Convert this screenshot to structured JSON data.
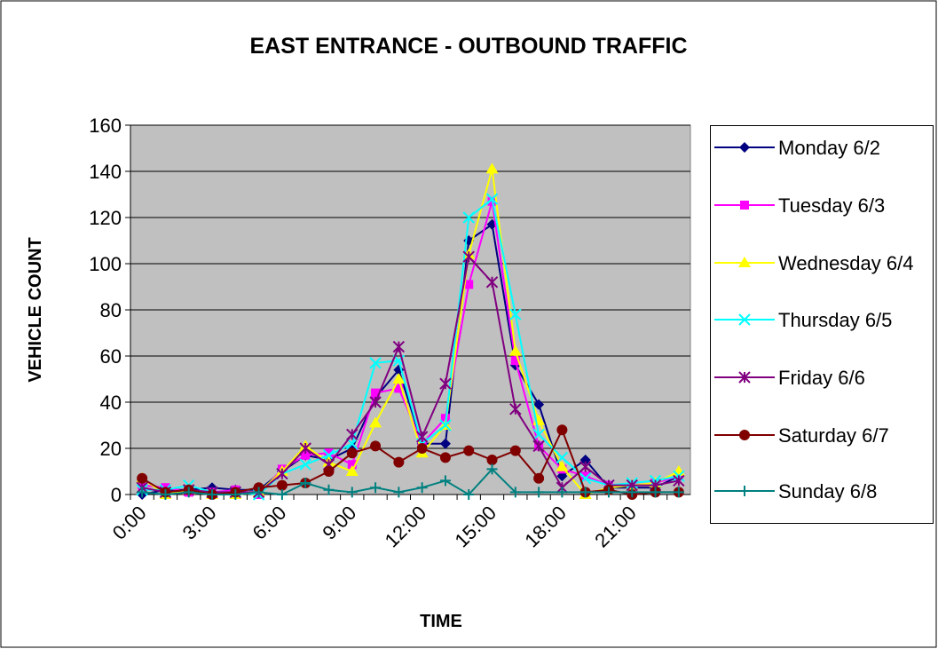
{
  "chart_data": {
    "type": "line",
    "title": "EAST ENTRANCE - OUTBOUND TRAFFIC",
    "x_label": "TIME",
    "y_label": "VEHICLE COUNT",
    "categories": [
      "0:00",
      null,
      null,
      "3:00",
      null,
      null,
      "6:00",
      null,
      null,
      "9:00",
      null,
      null,
      "12:00",
      null,
      null,
      "15:00",
      null,
      null,
      "18:00",
      null,
      null,
      "21:00",
      null,
      null
    ],
    "ylim": [
      0,
      160
    ],
    "yticks": [
      0,
      20,
      40,
      60,
      80,
      100,
      120,
      140,
      160
    ],
    "grid": true,
    "series": [
      {
        "name": "Monday 6/2",
        "color": "#000080",
        "marker": "diamond",
        "values": [
          0,
          2,
          2,
          3,
          2,
          2,
          10,
          17,
          15,
          20,
          42,
          54,
          22,
          22,
          110,
          117,
          56,
          39,
          8,
          15,
          3,
          3,
          3,
          8
        ]
      },
      {
        "name": "Tuesday 6/3",
        "color": "#ff00ff",
        "marker": "square",
        "values": [
          4,
          3,
          1,
          1,
          2,
          0,
          11,
          17,
          18,
          13,
          44,
          46,
          22,
          33,
          91,
          127,
          58,
          21,
          11,
          8,
          4,
          4,
          5,
          8
        ]
      },
      {
        "name": "Wednesday 6/4",
        "color": "#ffff00",
        "marker": "triangle",
        "values": [
          7,
          0,
          2,
          0,
          0,
          1,
          10,
          21,
          14,
          10,
          31,
          50,
          18,
          30,
          104,
          141,
          62,
          32,
          12,
          0,
          3,
          4,
          5,
          10
        ]
      },
      {
        "name": "Thursday 6/5",
        "color": "#00ffff",
        "marker": "x",
        "values": [
          2,
          2,
          4,
          1,
          1,
          0,
          9,
          13,
          17,
          22,
          57,
          58,
          22,
          30,
          120,
          128,
          78,
          26,
          16,
          7,
          4,
          5,
          6,
          8
        ]
      },
      {
        "name": "Friday 6/6",
        "color": "#800080",
        "marker": "star",
        "values": [
          3,
          1,
          2,
          1,
          1,
          1,
          9,
          20,
          13,
          26,
          40,
          64,
          25,
          48,
          103,
          92,
          37,
          21,
          3,
          12,
          4,
          4,
          4,
          6
        ]
      },
      {
        "name": "Saturday 6/7",
        "color": "#800000",
        "marker": "circle",
        "values": [
          7,
          1,
          2,
          0,
          1,
          3,
          4,
          5,
          10,
          18,
          21,
          14,
          20,
          16,
          19,
          15,
          19,
          7,
          28,
          1,
          2,
          0,
          1,
          1
        ]
      },
      {
        "name": "Sunday 6/8",
        "color": "#008080",
        "marker": "plus",
        "values": [
          1,
          0,
          1,
          0,
          0,
          1,
          0,
          5,
          2,
          1,
          3,
          1,
          3,
          6,
          0,
          11,
          1,
          1,
          1,
          1,
          1,
          1,
          1,
          1
        ]
      }
    ]
  }
}
